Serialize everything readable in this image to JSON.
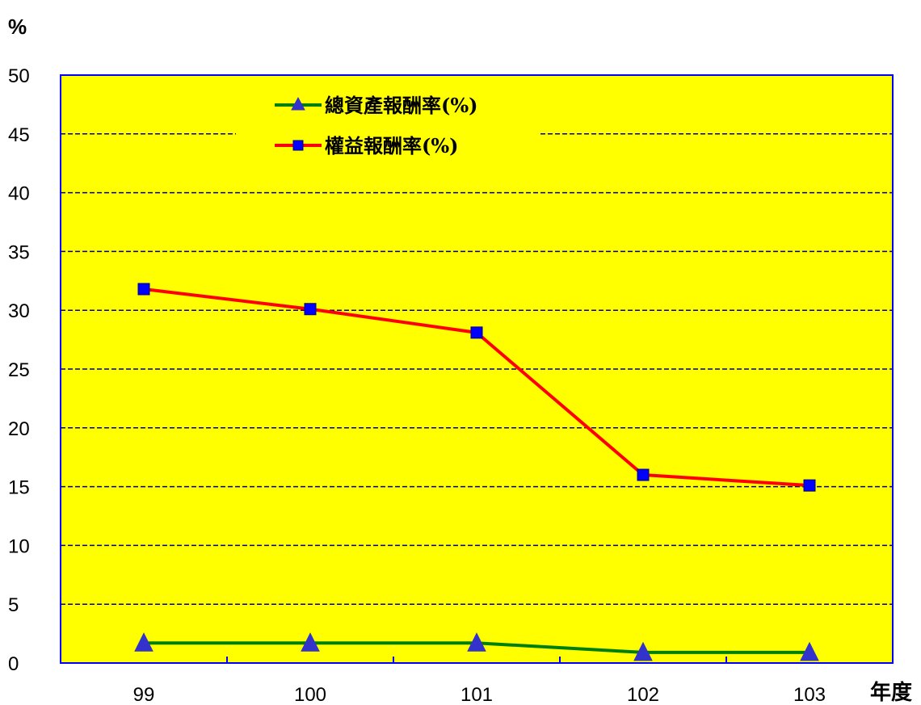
{
  "chart_data": {
    "type": "line",
    "ylabel": "%",
    "xlabel": "年度",
    "categories": [
      "99",
      "100",
      "101",
      "102",
      "103"
    ],
    "ylim": [
      0,
      50
    ],
    "yticks": [
      0,
      5,
      10,
      15,
      20,
      25,
      30,
      35,
      40,
      45,
      50
    ],
    "grid": "horizontal-dashed",
    "legend_position": "top-center",
    "plot_background": "#FFFF00",
    "series": [
      {
        "name": "總資產報酬率(%)",
        "values": [
          1.7,
          1.7,
          1.7,
          0.9,
          0.9
        ],
        "color": "#008000",
        "marker": "triangle",
        "marker_color": "#3333CC"
      },
      {
        "name": "權益報酬率(%)",
        "values": [
          31.8,
          30.1,
          28.1,
          16.0,
          15.1
        ],
        "color": "#FF0000",
        "marker": "square",
        "marker_color": "#0000FF"
      }
    ]
  }
}
